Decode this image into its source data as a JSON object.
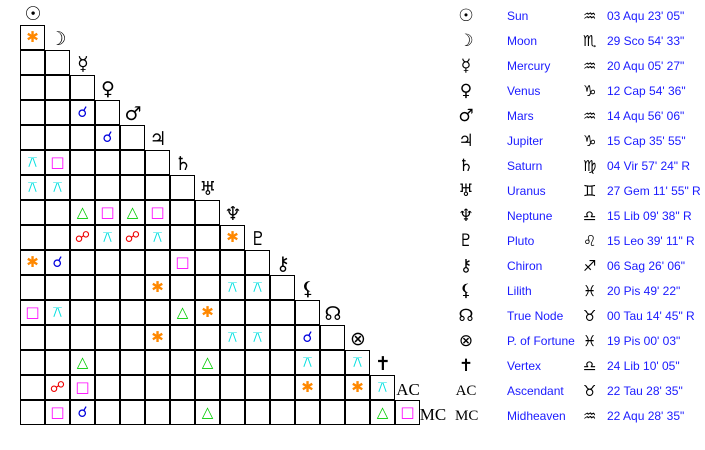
{
  "aspect_symbols": {
    "conj": {
      "glyph": "☌",
      "color": "#0000dd"
    },
    "sext": {
      "glyph": "✱",
      "color": "#ff8800"
    },
    "sq": {
      "glyph": "□",
      "color": "#ff00ff"
    },
    "tri": {
      "glyph": "△",
      "color": "#00cc00"
    },
    "opp": {
      "glyph": "☍",
      "color": "#ee0000"
    },
    "qx": {
      "glyph": "⚻",
      "color": "#00e0e0"
    }
  },
  "planets": [
    {
      "glyph": "☉",
      "icon": "sun-icon",
      "name": "Sun",
      "sign_glyph": "♒",
      "sign_icon": "aquarius-icon",
      "position": "03 Aqu 23' 05\""
    },
    {
      "glyph": "☽",
      "icon": "moon-icon",
      "name": "Moon",
      "sign_glyph": "♏",
      "sign_icon": "scorpio-icon",
      "position": "29 Sco 54' 33\""
    },
    {
      "glyph": "☿",
      "icon": "mercury-icon",
      "name": "Mercury",
      "sign_glyph": "♒",
      "sign_icon": "aquarius-icon",
      "position": "20 Aqu 05' 27\""
    },
    {
      "glyph": "♀",
      "icon": "venus-icon",
      "name": "Venus",
      "sign_glyph": "♑",
      "sign_icon": "capricorn-icon",
      "position": "12 Cap 54' 36\""
    },
    {
      "glyph": "♂",
      "icon": "mars-icon",
      "name": "Mars",
      "sign_glyph": "♒",
      "sign_icon": "aquarius-icon",
      "position": "14 Aqu 56' 06\""
    },
    {
      "glyph": "♃",
      "icon": "jupiter-icon",
      "name": "Jupiter",
      "sign_glyph": "♑",
      "sign_icon": "capricorn-icon",
      "position": "15 Cap 35' 55\""
    },
    {
      "glyph": "♄",
      "icon": "saturn-icon",
      "name": "Saturn",
      "sign_glyph": "♍",
      "sign_icon": "virgo-icon",
      "position": "04 Vir 57' 24\" R"
    },
    {
      "glyph": "♅",
      "icon": "uranus-icon",
      "name": "Uranus",
      "sign_glyph": "♊",
      "sign_icon": "gemini-icon",
      "position": "27 Gem 11' 55\" R"
    },
    {
      "glyph": "♆",
      "icon": "neptune-icon",
      "name": "Neptune",
      "sign_glyph": "♎",
      "sign_icon": "libra-icon",
      "position": "15 Lib 09' 38\" R"
    },
    {
      "glyph": "♇",
      "icon": "pluto-icon",
      "name": "Pluto",
      "sign_glyph": "♌",
      "sign_icon": "leo-icon",
      "position": "15 Leo 39' 11\" R"
    },
    {
      "glyph": "⚷",
      "icon": "chiron-icon",
      "name": "Chiron",
      "sign_glyph": "♐",
      "sign_icon": "sagittarius-icon",
      "position": "06 Sag 26' 06\""
    },
    {
      "glyph": "⚸",
      "icon": "lilith-icon",
      "name": "Lilith",
      "sign_glyph": "♓",
      "sign_icon": "pisces-icon",
      "position": "20 Pis 49' 22\""
    },
    {
      "glyph": "☊",
      "icon": "true-node-icon",
      "name": "True Node",
      "sign_glyph": "♉",
      "sign_icon": "taurus-icon",
      "position": "00 Tau 14' 45\" R"
    },
    {
      "glyph": "⊗",
      "icon": "part-of-fortune-icon",
      "name": "P. of Fortune",
      "sign_glyph": "♓",
      "sign_icon": "pisces-icon",
      "position": "19 Pis 00' 03\""
    },
    {
      "glyph": "✝",
      "icon": "vertex-icon",
      "name": "Vertex",
      "sign_glyph": "♎",
      "sign_icon": "libra-icon",
      "position": "24 Lib 10' 05\""
    },
    {
      "glyph": "AC",
      "icon": "ascendant-label",
      "name": "Ascendant",
      "sign_glyph": "♉",
      "sign_icon": "taurus-icon",
      "position": "22 Tau 28' 35\""
    },
    {
      "glyph": "MC",
      "icon": "midheaven-label",
      "name": "Midheaven",
      "sign_glyph": "♒",
      "sign_icon": "aquarius-icon",
      "position": "22 Aqu 28' 35\""
    }
  ],
  "aspect_grid": [
    [
      "sext"
    ],
    [
      "",
      ""
    ],
    [
      "",
      "",
      ""
    ],
    [
      "",
      "",
      "conj",
      ""
    ],
    [
      "",
      "",
      "",
      "conj",
      ""
    ],
    [
      "qx",
      "sq",
      "",
      "",
      "",
      ""
    ],
    [
      "qx",
      "qx",
      "",
      "",
      "",
      "",
      ""
    ],
    [
      "",
      "",
      "tri",
      "sq",
      "tri",
      "sq",
      "",
      ""
    ],
    [
      "",
      "",
      "opp",
      "qx",
      "opp",
      "qx",
      "",
      "",
      "sext"
    ],
    [
      "sext",
      "conj",
      "",
      "",
      "",
      "",
      "sq",
      "",
      "",
      ""
    ],
    [
      "",
      "",
      "",
      "",
      "",
      "sext",
      "",
      "",
      "qx",
      "qx",
      ""
    ],
    [
      "sq",
      "qx",
      "",
      "",
      "",
      "",
      "tri",
      "sext",
      "",
      "",
      "",
      ""
    ],
    [
      "",
      "",
      "",
      "",
      "",
      "sext",
      "",
      "",
      "qx",
      "qx",
      "",
      "conj",
      ""
    ],
    [
      "",
      "",
      "tri",
      "",
      "",
      "",
      "",
      "tri",
      "",
      "",
      "",
      "qx",
      "",
      "qx"
    ],
    [
      "",
      "opp",
      "sq",
      "",
      "",
      "",
      "",
      "",
      "",
      "",
      "",
      "sext",
      "",
      "sext",
      "qx"
    ],
    [
      "",
      "sq",
      "conj",
      "",
      "",
      "",
      "",
      "tri",
      "",
      "",
      "",
      "",
      "",
      "",
      "tri",
      "sq"
    ]
  ]
}
